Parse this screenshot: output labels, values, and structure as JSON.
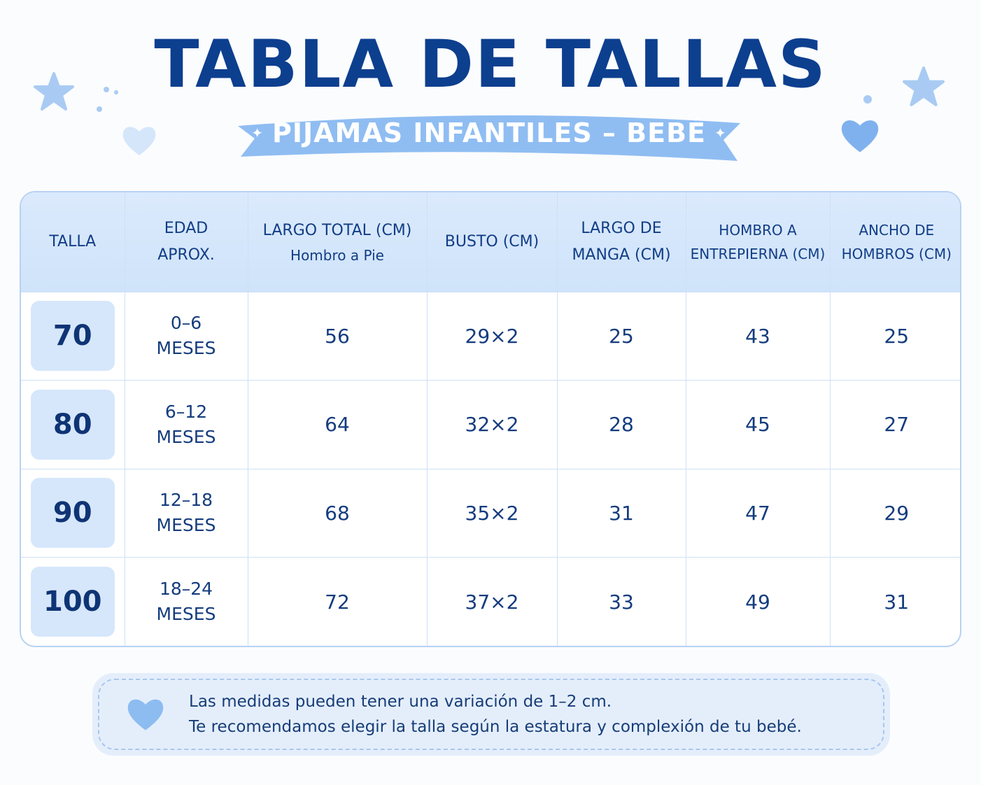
{
  "title": "TABLA DE TALLAS",
  "subtitle": "PIJAMAS INFANTILES – BEBÉ",
  "colors": {
    "primary": "#0d3f8f",
    "ribbon": "#8fbdf2",
    "header_bg": "#d3e5fb",
    "badge_bg": "#d6e7fb"
  },
  "icons": [
    "star-icon",
    "heart-icon",
    "sparkle-icon",
    "dot-icon"
  ],
  "table": {
    "headers": [
      {
        "label": "TALLA",
        "sub": ""
      },
      {
        "label": "EDAD\nAPROX.",
        "sub": ""
      },
      {
        "label": "LARGO TOTAL (CM)",
        "sub": "Hombro a Pie"
      },
      {
        "label": "BUSTO (CM)",
        "sub": ""
      },
      {
        "label": "LARGO DE\nMANGA (CM)",
        "sub": ""
      },
      {
        "label": "HOMBRO A\nENTREPIERNA (CM)",
        "sub": ""
      },
      {
        "label": "ANCHO DE\nHOMBROS (CM)",
        "sub": ""
      }
    ],
    "rows": [
      {
        "size": "70",
        "age_range": "0–6",
        "age_unit": "MESES",
        "largo_total": "56",
        "busto": "29×2",
        "manga": "25",
        "entrepierna": "43",
        "hombros": "25"
      },
      {
        "size": "80",
        "age_range": "6–12",
        "age_unit": "MESES",
        "largo_total": "64",
        "busto": "32×2",
        "manga": "28",
        "entrepierna": "45",
        "hombros": "27"
      },
      {
        "size": "90",
        "age_range": "12–18",
        "age_unit": "MESES",
        "largo_total": "68",
        "busto": "35×2",
        "manga": "31",
        "entrepierna": "47",
        "hombros": "29"
      },
      {
        "size": "100",
        "age_range": "18–24",
        "age_unit": "MESES",
        "largo_total": "72",
        "busto": "37×2",
        "manga": "33",
        "entrepierna": "49",
        "hombros": "31"
      }
    ]
  },
  "note": {
    "line1": "Las medidas pueden tener una variación de 1–2 cm.",
    "line2": "Te recomendamos elegir la talla según la estatura y complexión de tu bebé."
  }
}
